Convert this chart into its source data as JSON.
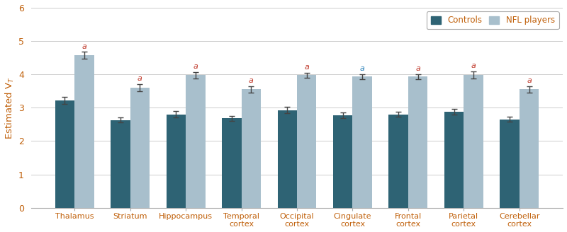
{
  "categories": [
    "Thalamus",
    "Striatum",
    "Hippocampus",
    "Temporal\ncortex",
    "Occipital\ncortex",
    "Cingulate\ncortex",
    "Frontal\ncortex",
    "Parietal\ncortex",
    "Cerebellar\ncortex"
  ],
  "controls_values": [
    3.22,
    2.63,
    2.8,
    2.68,
    2.93,
    2.77,
    2.8,
    2.88,
    2.65
  ],
  "nfl_values": [
    4.57,
    3.6,
    3.97,
    3.55,
    3.97,
    3.93,
    3.93,
    3.98,
    3.55
  ],
  "controls_errors": [
    0.1,
    0.07,
    0.1,
    0.07,
    0.1,
    0.08,
    0.08,
    0.09,
    0.07
  ],
  "nfl_errors": [
    0.1,
    0.1,
    0.1,
    0.1,
    0.08,
    0.08,
    0.08,
    0.1,
    0.1
  ],
  "controls_color": "#2e6374",
  "nfl_color": "#a8bfcc",
  "annotation_color_a": "#c0392b",
  "annotation_color_nfl": "#2980b9",
  "text_color": "#c0600a",
  "ylim": [
    0,
    6
  ],
  "yticks": [
    0,
    1,
    2,
    3,
    4,
    5,
    6
  ],
  "bar_width": 0.35,
  "legend_labels": [
    "Controls",
    "NFL players"
  ],
  "significance_labels": [
    "a",
    "a",
    "a",
    "a",
    "a",
    "a",
    "a",
    "a",
    "a"
  ],
  "cingulate_index": 5,
  "background_color": "#ffffff",
  "grid_color": "#cccccc"
}
